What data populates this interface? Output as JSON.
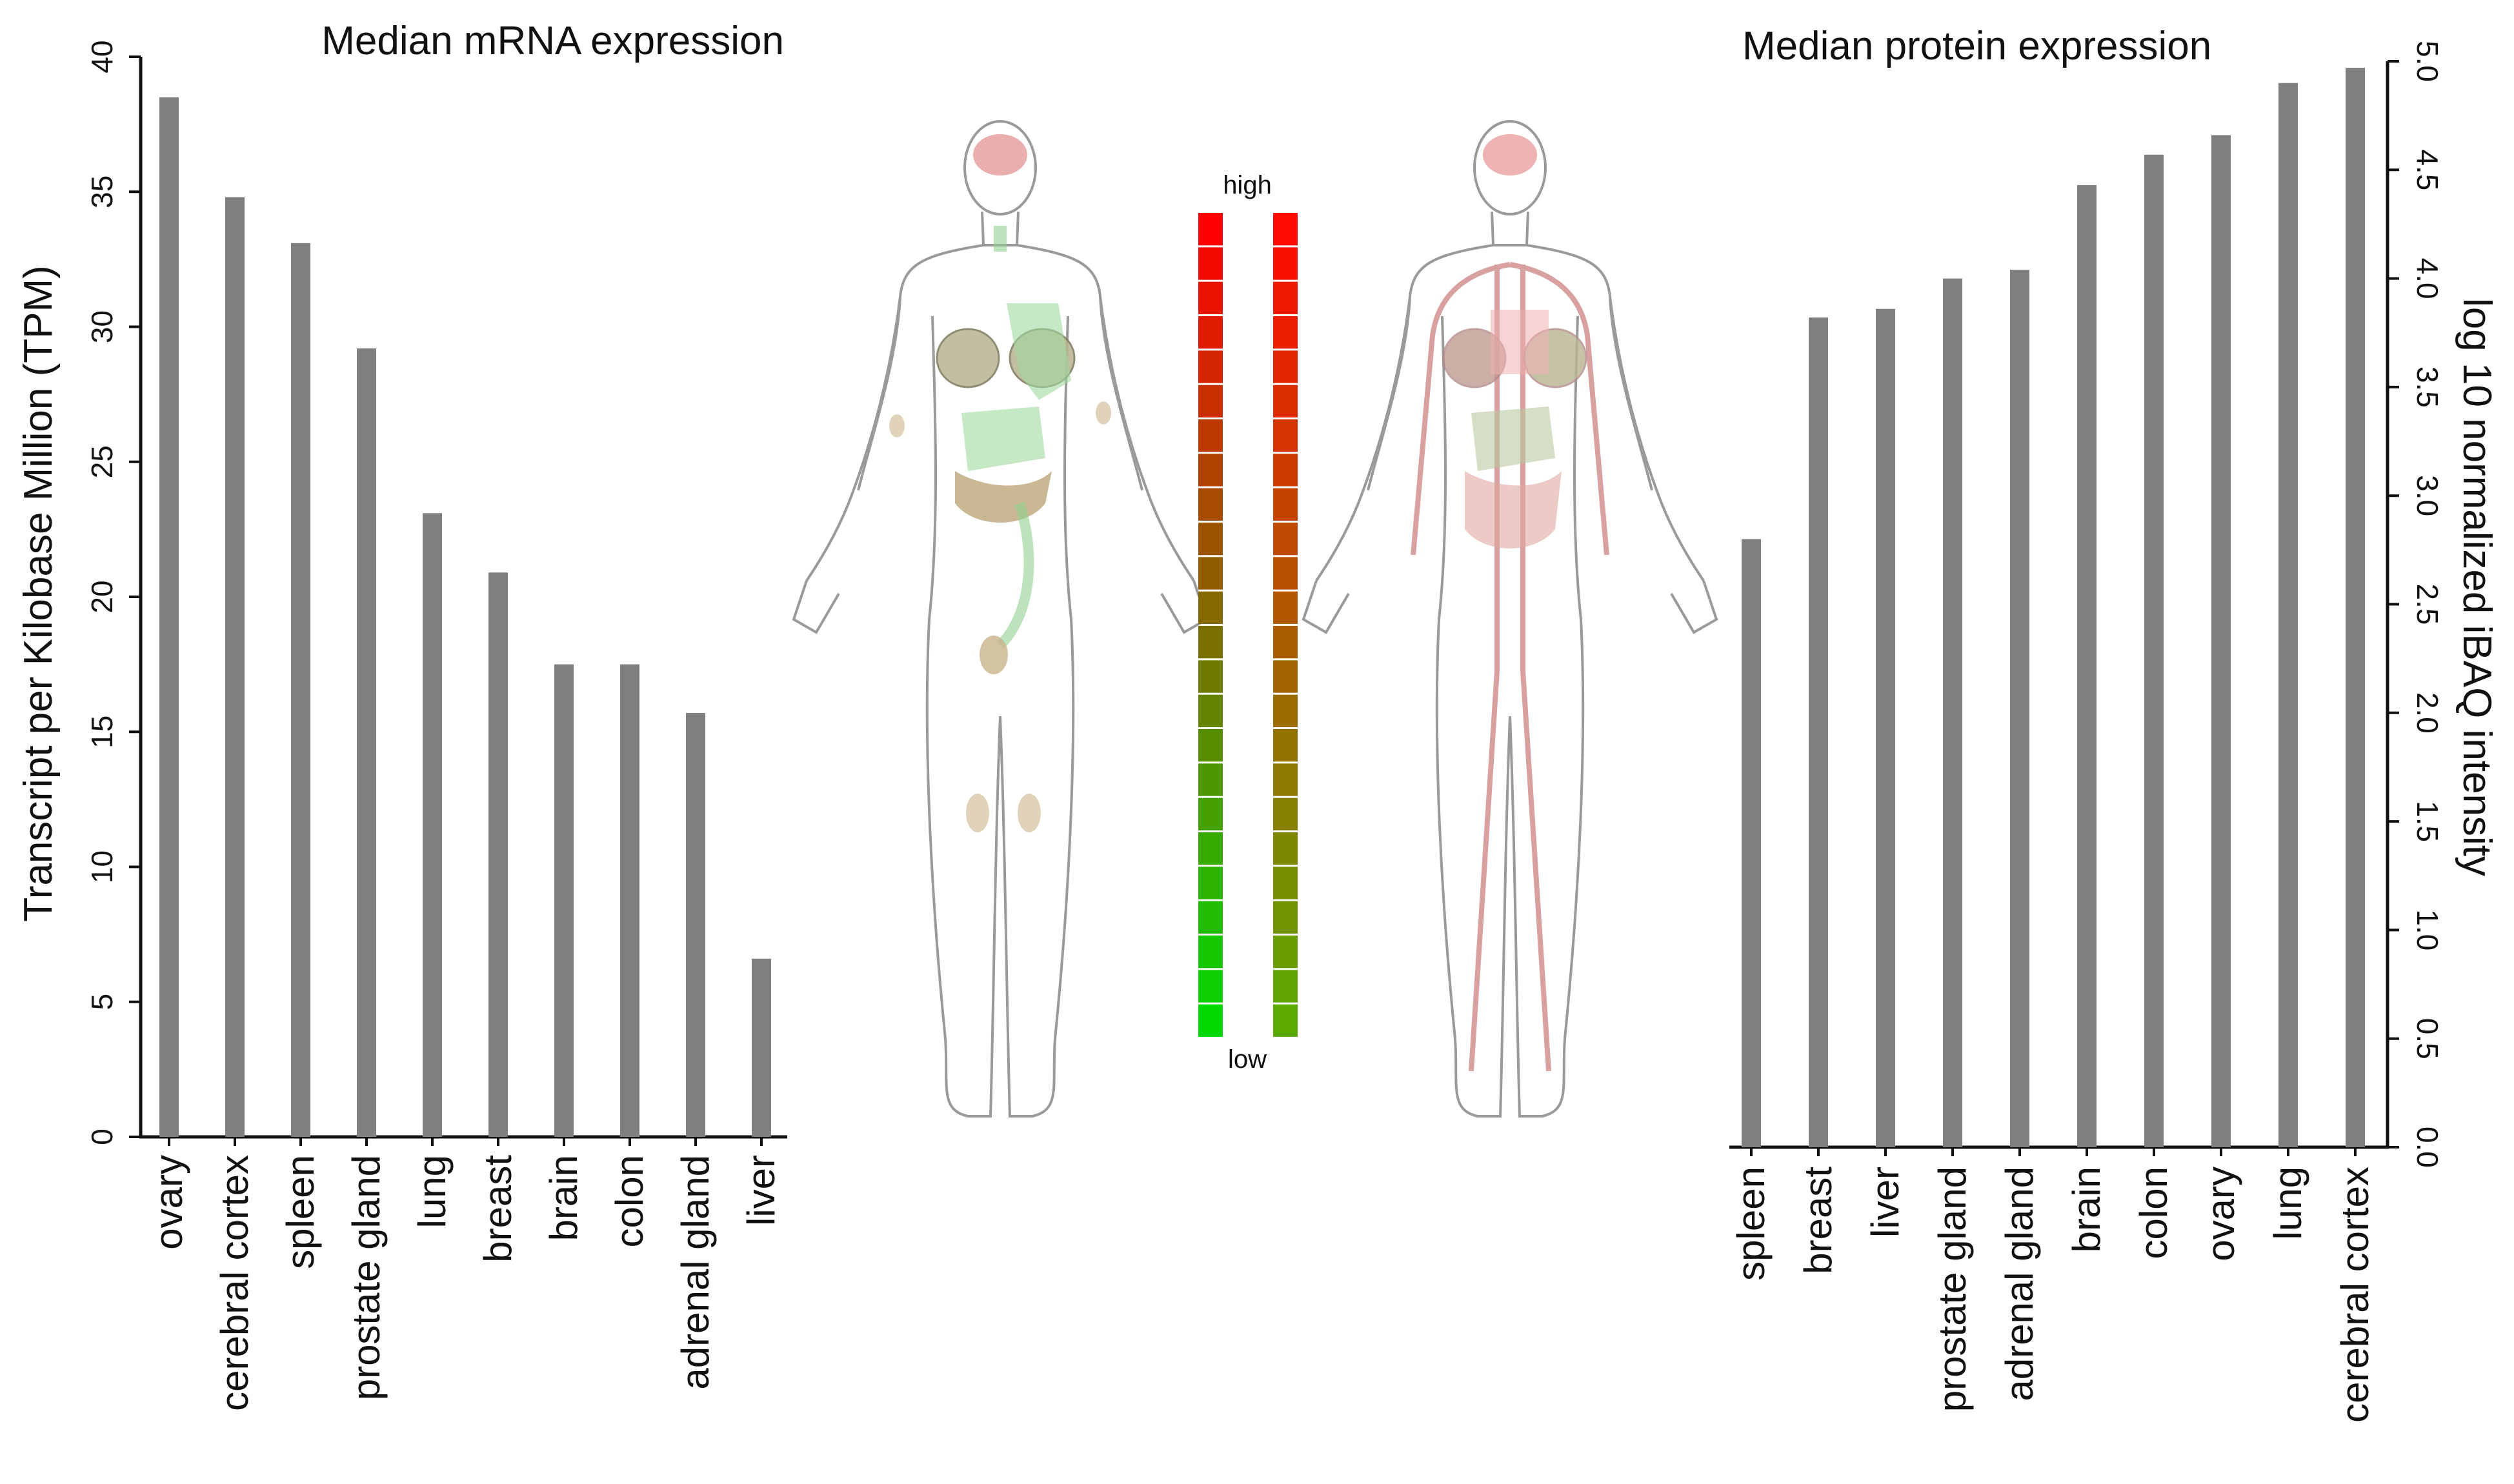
{
  "colors": {
    "bar": "#7f7f7f",
    "axis": "#111111",
    "scale_high": "#ff0000",
    "scale_low": "#00ff00"
  },
  "chart_data": [
    {
      "type": "bar",
      "title": "Median mRNA expression",
      "xlabel": "",
      "ylabel": "Transcript per Kilobase Million (TPM)",
      "ylim": [
        0,
        40
      ],
      "yticks": [
        "0",
        "5",
        "10",
        "15",
        "20",
        "25",
        "30",
        "35",
        "40"
      ],
      "yaxis_side": "left",
      "categories": [
        "ovary",
        "cerebral cortex",
        "spleen",
        "prostate gland",
        "lung",
        "breast",
        "brain",
        "colon",
        "adrenal gland",
        "liver"
      ],
      "values": [
        38.5,
        34.8,
        33.1,
        29.2,
        23.1,
        20.9,
        17.5,
        17.5,
        15.7,
        6.6
      ]
    },
    {
      "type": "bar",
      "title": "Median protein expression",
      "xlabel": "",
      "ylabel": "log 10 normalized iBAQ intensity",
      "ylim": [
        0,
        5
      ],
      "yticks": [
        "0.0",
        "0.5",
        "1.0",
        "1.5",
        "2.0",
        "2.5",
        "3.0",
        "3.5",
        "4.0",
        "4.5",
        "5.0"
      ],
      "yaxis_side": "right",
      "categories": [
        "spleen",
        "breast",
        "liver",
        "prostate gland",
        "adrenal gland",
        "brain",
        "colon",
        "ovary",
        "lung",
        "cerebral cortex"
      ],
      "values": [
        2.8,
        3.82,
        3.86,
        4.0,
        4.04,
        4.43,
        4.57,
        4.66,
        4.9,
        4.97
      ]
    }
  ],
  "scale": {
    "high_label": "high",
    "low_label": "low",
    "segments": 24
  },
  "body_maps": [
    {
      "name": "mRNA tissue map"
    },
    {
      "name": "protein tissue map"
    }
  ]
}
